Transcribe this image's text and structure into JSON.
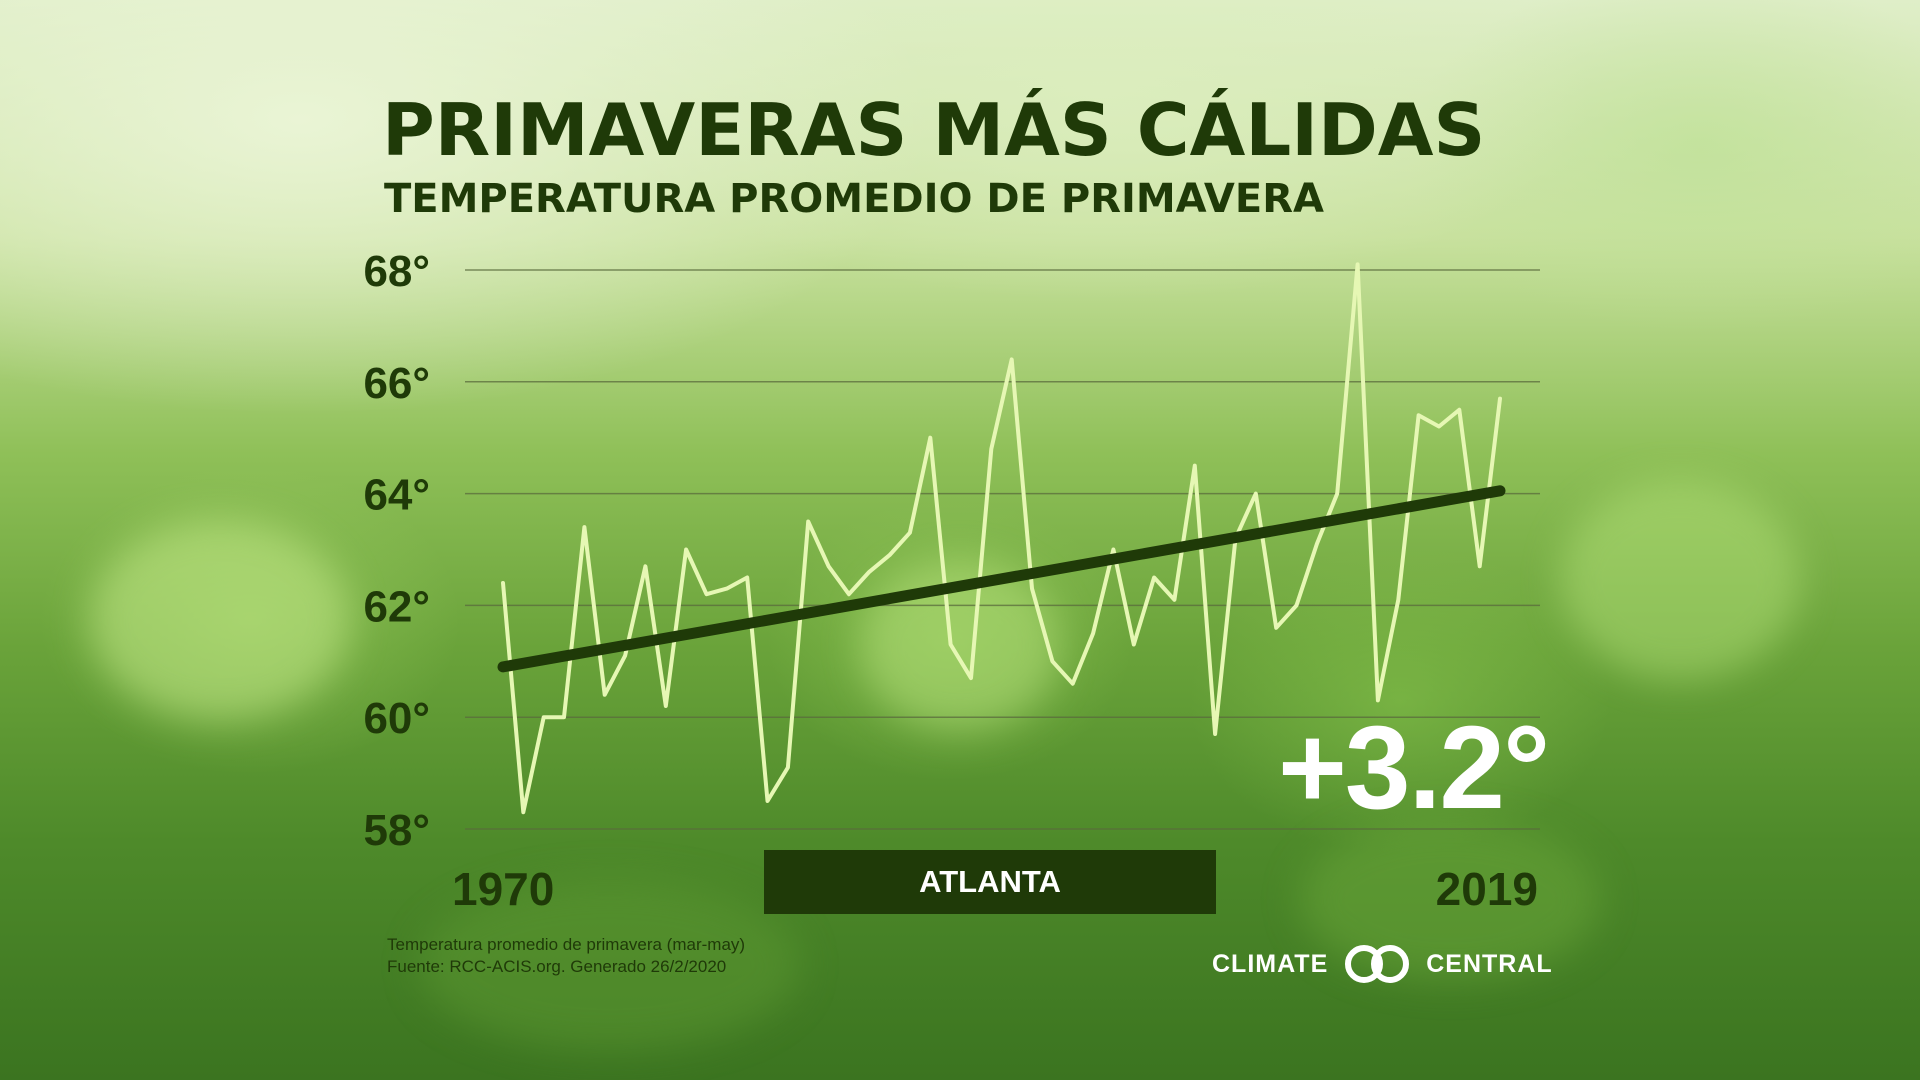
{
  "chart_data": {
    "type": "line",
    "title": "PRIMAVERAS MÁS CÁLIDAS",
    "subtitle": "TEMPERATURA PROMEDIO DE PRIMAVERA",
    "location": "ATLANTA",
    "x_start_label": "1970",
    "x_end_label": "2019",
    "ytick_labels": [
      "68°",
      "66°",
      "64°",
      "62°",
      "60°",
      "58°"
    ],
    "ytick_values": [
      68,
      66,
      64,
      62,
      60,
      58
    ],
    "ylim": [
      58,
      68
    ],
    "xlim": [
      1970,
      2019
    ],
    "grid": true,
    "x": [
      1970,
      1971,
      1972,
      1973,
      1974,
      1975,
      1976,
      1977,
      1978,
      1979,
      1980,
      1981,
      1982,
      1983,
      1984,
      1985,
      1986,
      1987,
      1988,
      1989,
      1990,
      1991,
      1992,
      1993,
      1994,
      1995,
      1996,
      1997,
      1998,
      1999,
      2000,
      2001,
      2002,
      2003,
      2004,
      2005,
      2006,
      2007,
      2008,
      2009,
      2010,
      2011,
      2012,
      2013,
      2014,
      2015,
      2016,
      2017,
      2018,
      2019
    ],
    "series": [
      {
        "values": [
          62.4,
          58.3,
          60.0,
          60.0,
          63.4,
          60.4,
          61.1,
          62.7,
          60.2,
          63.0,
          62.2,
          62.3,
          62.5,
          58.5,
          59.1,
          63.5,
          62.7,
          62.2,
          62.6,
          62.9,
          63.3,
          65.0,
          61.3,
          60.7,
          64.8,
          66.4,
          62.3,
          61.0,
          60.6,
          61.5,
          63.0,
          61.3,
          62.5,
          62.1,
          64.5,
          59.7,
          63.2,
          64.0,
          61.6,
          62.0,
          63.1,
          64.0,
          68.1,
          60.3,
          62.1,
          65.4,
          65.2,
          65.5,
          62.7,
          65.7
        ],
        "color": "#e6f7b4"
      }
    ],
    "trend": {
      "start": 60.9,
      "end": 64.05,
      "color": "#1f3a08"
    },
    "change_label": "+3.2°"
  },
  "footnote": {
    "line1": "Temperatura promedio de primavera (mar-may)",
    "line2": "Fuente: RCC-ACIS.org. Generado 26/2/2020"
  },
  "brand": {
    "left": "CLIMATE",
    "right": "CENTRAL",
    "logo_icon": "double-ring-logo-icon"
  },
  "colors": {
    "text_dark": "#1f3a08",
    "data_line": "#e6f7b4",
    "grid": "#5a6b3c",
    "location_box": "#1f3a08"
  }
}
